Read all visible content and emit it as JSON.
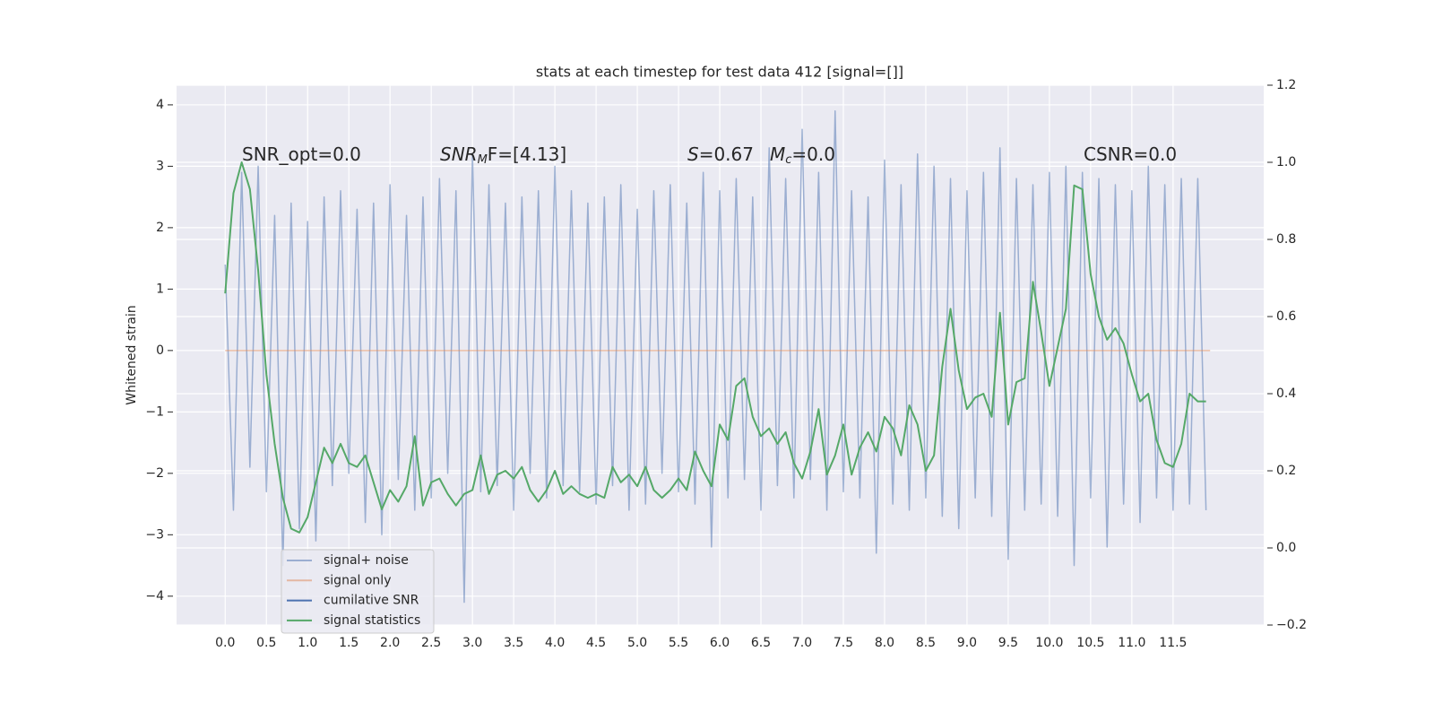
{
  "chart_data": {
    "type": "line",
    "title": "stats at each timestep for test data 412 [signal=[]]",
    "y_label": "Whitened strain",
    "xlim": [
      -0.59,
      12.6
    ],
    "ylim": [
      -4.47,
      4.32
    ],
    "y2lim": [
      -0.2,
      1.2
    ],
    "xticks": [
      {
        "value": 0,
        "label": "0.0"
      },
      0.5,
      {
        "value": 1,
        "label": "1.0"
      },
      1.5,
      {
        "value": 2,
        "label": "2.0"
      },
      2.5,
      {
        "value": 3,
        "label": "3.0"
      },
      3.5,
      {
        "value": 4,
        "label": "4.0"
      },
      4.5,
      {
        "value": 5,
        "label": "5.0"
      },
      5.5,
      {
        "value": 6,
        "label": "6.0"
      },
      6.5,
      {
        "value": 7,
        "label": "7.0"
      },
      7.5,
      {
        "value": 8,
        "label": "8.0"
      },
      8.5,
      {
        "value": 9,
        "label": "9.0"
      },
      9.5,
      {
        "value": 10,
        "label": "10.0"
      },
      10.5,
      {
        "value": 11,
        "label": "11.0"
      },
      11.5
    ],
    "yticks": [
      {
        "value": -4,
        "label": "−4"
      },
      {
        "value": -3,
        "label": "−3"
      },
      {
        "value": -2,
        "label": "−2"
      },
      {
        "value": -1,
        "label": "−1"
      },
      0,
      1,
      2,
      3,
      4
    ],
    "y2ticks": [
      {
        "value": -0.2,
        "label": "−0.2"
      },
      {
        "value": 0,
        "label": "0.0"
      },
      0.2,
      0.4,
      0.6,
      0.8,
      {
        "value": 1,
        "label": "1.0"
      },
      1.2
    ],
    "grid": true,
    "annotations": [
      {
        "text": "SNR_opt=0.0"
      },
      {
        "italic": "SNR",
        "sub": "M",
        "text": "F=[4.13]"
      },
      {
        "italic": "S",
        "text": "=0.67"
      },
      {
        "italic": "M",
        "sub": "c",
        "text": "=0.0"
      },
      {
        "text": "CSNR=0.0"
      }
    ],
    "legend": "lower left",
    "series": [
      {
        "name": "signal+ noise",
        "color": "#4c72b0",
        "alpha": 0.5,
        "x": [
          0,
          0.1,
          0.2,
          0.3,
          0.4,
          0.5,
          0.6,
          0.7,
          0.8,
          0.9,
          1,
          1.1,
          1.2,
          1.3,
          1.4,
          1.5,
          1.6,
          1.7,
          1.8,
          1.9,
          2,
          2.1,
          2.2,
          2.3,
          2.4,
          2.5,
          2.6,
          2.7,
          2.8,
          2.9,
          3,
          3.1,
          3.2,
          3.3,
          3.4,
          3.5,
          3.6,
          3.7,
          3.8,
          3.9,
          4,
          4.1,
          4.2,
          4.3,
          4.4,
          4.5,
          4.6,
          4.7,
          4.8,
          4.9,
          5,
          5.1,
          5.2,
          5.3,
          5.4,
          5.5,
          5.6,
          5.7,
          5.8,
          5.9,
          6,
          6.1,
          6.2,
          6.3,
          6.4,
          6.5,
          6.6,
          6.7,
          6.8,
          6.9,
          7,
          7.1,
          7.2,
          7.3,
          7.4,
          7.5,
          7.6,
          7.7,
          7.8,
          7.9,
          8,
          8.1,
          8.2,
          8.3,
          8.4,
          8.5,
          8.6,
          8.7,
          8.8,
          8.9,
          9,
          9.1,
          9.2,
          9.3,
          9.4,
          9.5,
          9.6,
          9.7,
          9.8,
          9.9,
          10,
          10.1,
          10.2,
          10.3,
          10.4,
          10.5,
          10.6,
          10.7,
          10.8,
          10.9,
          11,
          11.1,
          11.2,
          11.3,
          11.4,
          11.5,
          11.6,
          11.7,
          11.8,
          11.9
        ],
        "values": [
          1.4,
          -2.6,
          2.9,
          -1.9,
          3.0,
          -2.3,
          2.2,
          -3.5,
          2.4,
          -2.9,
          2.1,
          -3.1,
          2.5,
          -2.2,
          2.6,
          -2.0,
          2.3,
          -2.8,
          2.4,
          -3.0,
          2.7,
          -2.1,
          2.2,
          -2.6,
          2.5,
          -2.4,
          2.8,
          -2.0,
          2.6,
          -4.1,
          3.2,
          -2.3,
          2.7,
          -2.2,
          2.4,
          -2.6,
          2.5,
          -2.0,
          2.6,
          -2.4,
          3.0,
          -2.2,
          2.6,
          -2.3,
          2.4,
          -2.5,
          2.5,
          -2.2,
          2.7,
          -2.6,
          2.3,
          -2.5,
          2.6,
          -2.0,
          2.7,
          -2.3,
          2.4,
          -2.5,
          2.9,
          -3.2,
          2.6,
          -2.4,
          2.8,
          -2.1,
          2.5,
          -2.6,
          3.3,
          -2.2,
          2.8,
          -2.4,
          3.6,
          -2.1,
          2.9,
          -2.6,
          3.9,
          -2.3,
          2.6,
          -2.4,
          2.5,
          -3.3,
          3.1,
          -2.5,
          2.7,
          -2.6,
          3.2,
          -2.4,
          3.0,
          -2.7,
          2.8,
          -2.9,
          2.6,
          -2.4,
          2.9,
          -2.7,
          3.3,
          -3.4,
          2.8,
          -2.6,
          2.7,
          -2.5,
          2.9,
          -2.7,
          3.0,
          -3.5,
          2.9,
          -2.4,
          2.8,
          -3.2,
          2.7,
          -2.5,
          2.6,
          -2.8,
          3.0,
          -2.4,
          2.7,
          -2.6,
          2.8,
          -2.5,
          2.8,
          -2.6
        ]
      },
      {
        "name": "signal only",
        "color": "#dd8452",
        "alpha": 0.5,
        "x": [
          0,
          11.95
        ],
        "values": [
          0,
          0
        ]
      },
      {
        "name": "cumilative SNR",
        "color": "#4c72b0",
        "alpha": 1,
        "x": [],
        "values": []
      },
      {
        "name": "signal statistics",
        "color": "#55a868",
        "alpha": 1,
        "axis": "y2",
        "x": [
          0,
          0.1,
          0.2,
          0.3,
          0.4,
          0.5,
          0.6,
          0.7,
          0.8,
          0.9,
          1,
          1.1,
          1.2,
          1.3,
          1.4,
          1.5,
          1.6,
          1.7,
          1.8,
          1.9,
          2,
          2.1,
          2.2,
          2.3,
          2.4,
          2.5,
          2.6,
          2.7,
          2.8,
          2.9,
          3,
          3.1,
          3.2,
          3.3,
          3.4,
          3.5,
          3.6,
          3.7,
          3.8,
          3.9,
          4,
          4.1,
          4.2,
          4.3,
          4.4,
          4.5,
          4.6,
          4.7,
          4.8,
          4.9,
          5,
          5.1,
          5.2,
          5.3,
          5.4,
          5.5,
          5.6,
          5.7,
          5.8,
          5.9,
          6,
          6.1,
          6.2,
          6.3,
          6.4,
          6.5,
          6.6,
          6.7,
          6.8,
          6.9,
          7,
          7.1,
          7.2,
          7.3,
          7.4,
          7.5,
          7.6,
          7.7,
          7.8,
          7.9,
          8,
          8.1,
          8.2,
          8.3,
          8.4,
          8.5,
          8.6,
          8.7,
          8.8,
          8.9,
          9,
          9.1,
          9.2,
          9.3,
          9.4,
          9.5,
          9.6,
          9.7,
          9.8,
          9.9,
          10,
          10.1,
          10.2,
          10.3,
          10.4,
          10.5,
          10.6,
          10.7,
          10.8,
          10.9,
          11,
          11.1,
          11.2,
          11.3,
          11.4,
          11.5,
          11.6,
          11.7,
          11.8,
          11.9
        ],
        "values": [
          0.66,
          0.92,
          1.0,
          0.93,
          0.72,
          0.45,
          0.27,
          0.13,
          0.05,
          0.04,
          0.08,
          0.17,
          0.26,
          0.22,
          0.27,
          0.22,
          0.21,
          0.24,
          0.17,
          0.1,
          0.15,
          0.12,
          0.16,
          0.29,
          0.11,
          0.17,
          0.18,
          0.14,
          0.11,
          0.14,
          0.15,
          0.24,
          0.14,
          0.19,
          0.2,
          0.18,
          0.21,
          0.15,
          0.12,
          0.15,
          0.2,
          0.14,
          0.16,
          0.14,
          0.13,
          0.14,
          0.13,
          0.21,
          0.17,
          0.19,
          0.16,
          0.21,
          0.15,
          0.13,
          0.15,
          0.18,
          0.15,
          0.25,
          0.2,
          0.16,
          0.32,
          0.28,
          0.42,
          0.44,
          0.34,
          0.29,
          0.31,
          0.27,
          0.3,
          0.22,
          0.18,
          0.25,
          0.36,
          0.19,
          0.24,
          0.32,
          0.19,
          0.26,
          0.3,
          0.25,
          0.34,
          0.31,
          0.24,
          0.37,
          0.32,
          0.2,
          0.24,
          0.47,
          0.62,
          0.46,
          0.36,
          0.39,
          0.4,
          0.34,
          0.61,
          0.32,
          0.43,
          0.44,
          0.69,
          0.56,
          0.42,
          0.52,
          0.62,
          0.94,
          0.93,
          0.71,
          0.6,
          0.54,
          0.57,
          0.53,
          0.45,
          0.38,
          0.4,
          0.28,
          0.22,
          0.21,
          0.27,
          0.4,
          0.38,
          0.38
        ]
      }
    ]
  }
}
